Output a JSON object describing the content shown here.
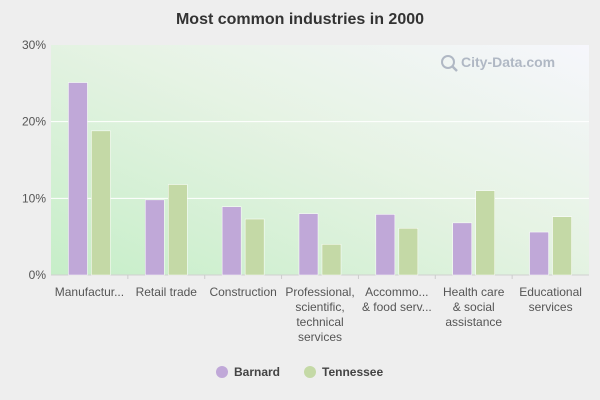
{
  "chart_data": {
    "type": "bar",
    "title": "Most common industries in 2000",
    "categories": [
      [
        "Manufactur..."
      ],
      [
        "Retail trade"
      ],
      [
        "Construction"
      ],
      [
        "Professional,",
        "scientific,",
        "technical",
        "services"
      ],
      [
        "Accommo...",
        "& food serv..."
      ],
      [
        "Health care",
        "& social",
        "assistance"
      ],
      [
        "Educational",
        "services"
      ]
    ],
    "series": [
      {
        "name": "Barnard",
        "color": "#c0a8d8",
        "values": [
          25.1,
          9.8,
          8.9,
          8.0,
          7.9,
          6.8,
          5.6
        ]
      },
      {
        "name": "Tennessee",
        "color": "#c4d9a6",
        "values": [
          18.8,
          11.8,
          7.3,
          4.0,
          6.1,
          11.0,
          7.6
        ]
      }
    ],
    "ylim": [
      0,
      30
    ],
    "yticks": [
      0,
      10,
      20,
      30
    ],
    "ytick_labels": [
      "0%",
      "10%",
      "20%",
      "30%"
    ],
    "xlabel": "",
    "ylabel": "",
    "grid": true,
    "legend_position": "bottom-center"
  },
  "watermark": {
    "text": "City-Data.com",
    "icon": "magnifier-icon"
  }
}
